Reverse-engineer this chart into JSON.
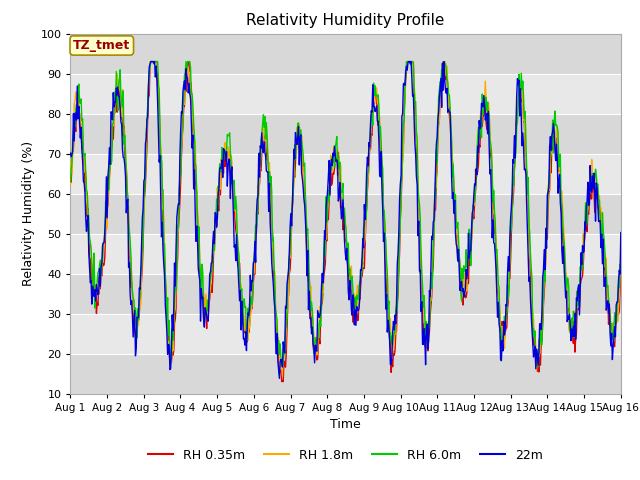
{
  "title": "Relativity Humidity Profile",
  "xlabel": "Time",
  "ylabel": "Relativity Humidity (%)",
  "ylim": [
    10,
    100
  ],
  "yticks": [
    10,
    20,
    30,
    40,
    50,
    60,
    70,
    80,
    90,
    100
  ],
  "xtick_labels": [
    "Aug 1",
    "Aug 2",
    "Aug 3",
    "Aug 4",
    "Aug 5",
    "Aug 6",
    "Aug 7",
    "Aug 8",
    "Aug 9",
    "Aug 10",
    "Aug 11",
    "Aug 12",
    "Aug 13",
    "Aug 14",
    "Aug 15",
    "Aug 16"
  ],
  "colors": {
    "RH 0.35m": "#dd0000",
    "RH 1.8m": "#ffaa00",
    "RH 6.0m": "#00cc00",
    "22m": "#0000dd"
  },
  "legend_labels": [
    "RH 0.35m",
    "RH 1.8m",
    "RH 6.0m",
    "22m"
  ],
  "annotation_text": "TZ_tmet",
  "annotation_color": "#990000",
  "annotation_bg": "#ffffcc",
  "annotation_border": "#aa8800",
  "plot_bg": "#e8e8e8",
  "grid_color": "#ffffff",
  "n_days": 15,
  "n_points": 720,
  "figsize": [
    6.4,
    4.8
  ],
  "dpi": 100,
  "band_colors": [
    "#d8d8d8",
    "#e8e8e8"
  ],
  "band_ranges": [
    [
      10,
      20
    ],
    [
      20,
      30
    ],
    [
      30,
      40
    ],
    [
      40,
      50
    ],
    [
      50,
      60
    ],
    [
      60,
      70
    ],
    [
      70,
      80
    ],
    [
      80,
      90
    ],
    [
      90,
      100
    ]
  ]
}
